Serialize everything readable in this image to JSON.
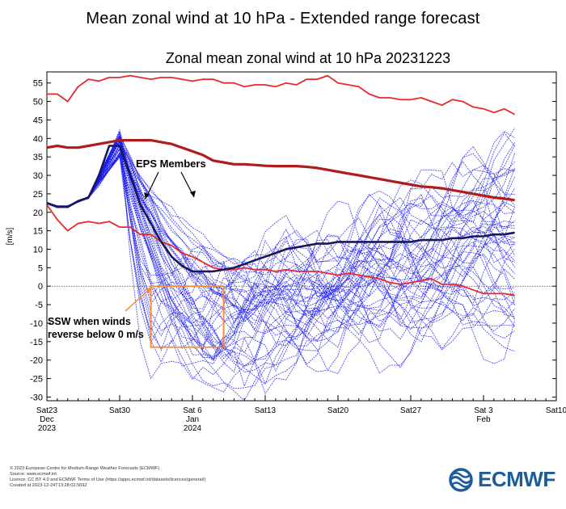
{
  "page": {
    "title": "Mean zonal wind at 10 hPa - Extended range forecast"
  },
  "chart_data": {
    "type": "line",
    "title": "Zonal mean zonal wind at 10 hPa 20231223",
    "ylabel": "[m/s]",
    "ylim": [
      -31,
      58
    ],
    "yticks": [
      -30,
      -25,
      -20,
      -15,
      -10,
      -5,
      0,
      5,
      10,
      15,
      20,
      25,
      30,
      35,
      40,
      45,
      50,
      55
    ],
    "xlim": [
      "2023-12-23",
      "2024-02-10"
    ],
    "xticks": [
      {
        "date": "2023-12-23",
        "label": "Sat23",
        "sub1": "Dec",
        "sub2": "2023"
      },
      {
        "date": "2023-12-30",
        "label": "Sat30",
        "sub1": "",
        "sub2": ""
      },
      {
        "date": "2024-01-06",
        "label": "Sat 6",
        "sub1": "Jan",
        "sub2": "2024"
      },
      {
        "date": "2024-01-13",
        "label": "Sat13",
        "sub1": "",
        "sub2": ""
      },
      {
        "date": "2024-01-20",
        "label": "Sat20",
        "sub1": "",
        "sub2": ""
      },
      {
        "date": "2024-01-27",
        "label": "Sat27",
        "sub1": "",
        "sub2": ""
      },
      {
        "date": "2024-02-03",
        "label": "Sat 3",
        "sub1": "Feb",
        "sub2": ""
      },
      {
        "date": "2024-02-10",
        "label": "Sat10",
        "sub1": "",
        "sub2": ""
      }
    ],
    "zero_line": true,
    "grid": false,
    "series": [
      {
        "role": "climate-max",
        "color": "#e8282b",
        "x": [
          "2023-12-23",
          "2023-12-24",
          "2023-12-25",
          "2023-12-26",
          "2023-12-27",
          "2023-12-28",
          "2023-12-29",
          "2023-12-30",
          "2023-12-31",
          "2024-01-01",
          "2024-01-02",
          "2024-01-03",
          "2024-01-04",
          "2024-01-05",
          "2024-01-06",
          "2024-01-07",
          "2024-01-08",
          "2024-01-09",
          "2024-01-10",
          "2024-01-11",
          "2024-01-12",
          "2024-01-13",
          "2024-01-14",
          "2024-01-15",
          "2024-01-16",
          "2024-01-17",
          "2024-01-18",
          "2024-01-19",
          "2024-01-20",
          "2024-01-21",
          "2024-01-22",
          "2024-01-23",
          "2024-01-24",
          "2024-01-25",
          "2024-01-26",
          "2024-01-27",
          "2024-01-28",
          "2024-01-29",
          "2024-01-30",
          "2024-01-31",
          "2024-02-01",
          "2024-02-02",
          "2024-02-03",
          "2024-02-04",
          "2024-02-05",
          "2024-02-06"
        ],
        "y": [
          52,
          52,
          50,
          54,
          56,
          55.5,
          56.5,
          56.5,
          57,
          56.5,
          56,
          56.5,
          56.5,
          56,
          55.5,
          56,
          56,
          55,
          55,
          54,
          54.5,
          54.5,
          54,
          55,
          54.5,
          56,
          56,
          57,
          55,
          54.5,
          54,
          52,
          51,
          51,
          50.5,
          50.5,
          51,
          50,
          49,
          50.5,
          50,
          48.5,
          48,
          47,
          48,
          46.5
        ]
      },
      {
        "role": "climate-min",
        "color": "#e8282b",
        "x": [
          "2023-12-23",
          "2023-12-24",
          "2023-12-25",
          "2023-12-26",
          "2023-12-27",
          "2023-12-28",
          "2023-12-29",
          "2023-12-30",
          "2023-12-31",
          "2024-01-01",
          "2024-01-02",
          "2024-01-03",
          "2024-01-04",
          "2024-01-05",
          "2024-01-06",
          "2024-01-07",
          "2024-01-08",
          "2024-01-09",
          "2024-01-10",
          "2024-01-11",
          "2024-01-12",
          "2024-01-13",
          "2024-01-14",
          "2024-01-15",
          "2024-01-16",
          "2024-01-17",
          "2024-01-18",
          "2024-01-19",
          "2024-01-20",
          "2024-01-21",
          "2024-01-22",
          "2024-01-23",
          "2024-01-24",
          "2024-01-25",
          "2024-01-26",
          "2024-01-27",
          "2024-01-28",
          "2024-01-29",
          "2024-01-30",
          "2024-01-31",
          "2024-02-01",
          "2024-02-02",
          "2024-02-03",
          "2024-02-04",
          "2024-02-05",
          "2024-02-06"
        ],
        "y": [
          22,
          18,
          15,
          17,
          17.5,
          17,
          17.5,
          16,
          16,
          14,
          14,
          12,
          11,
          9,
          8,
          6.5,
          5,
          4.5,
          4.5,
          5,
          4.5,
          4.5,
          4,
          4.5,
          4,
          4,
          4,
          3.5,
          3,
          3.5,
          3,
          2.5,
          2,
          1,
          0.5,
          1,
          1.5,
          2,
          0.5,
          0.5,
          0,
          -1,
          -2,
          -2,
          -2,
          -2.5
        ]
      },
      {
        "role": "climate-mean",
        "color": "#b01c1c",
        "x": [
          "2023-12-23",
          "2023-12-24",
          "2023-12-25",
          "2023-12-26",
          "2023-12-27",
          "2023-12-28",
          "2023-12-29",
          "2023-12-30",
          "2023-12-31",
          "2024-01-01",
          "2024-01-02",
          "2024-01-03",
          "2024-01-04",
          "2024-01-05",
          "2024-01-06",
          "2024-01-07",
          "2024-01-08",
          "2024-01-09",
          "2024-01-10",
          "2024-01-11",
          "2024-01-12",
          "2024-01-13",
          "2024-01-14",
          "2024-01-15",
          "2024-01-16",
          "2024-01-17",
          "2024-01-18",
          "2024-01-19",
          "2024-01-20",
          "2024-01-21",
          "2024-01-22",
          "2024-01-23",
          "2024-01-24",
          "2024-01-25",
          "2024-01-26",
          "2024-01-27",
          "2024-01-28",
          "2024-01-29",
          "2024-01-30",
          "2024-01-31",
          "2024-02-01",
          "2024-02-02",
          "2024-02-03",
          "2024-02-04",
          "2024-02-05",
          "2024-02-06"
        ],
        "y": [
          37.5,
          38,
          37.5,
          37.5,
          38,
          38.5,
          39,
          39.5,
          39.5,
          39.5,
          39.5,
          39,
          38.5,
          37.5,
          36.5,
          35.5,
          34,
          33.5,
          33,
          33,
          32.8,
          32.6,
          32.5,
          32.5,
          32.5,
          32.3,
          32,
          31.5,
          31,
          30.5,
          30,
          29.5,
          29,
          28.5,
          28,
          27.5,
          27,
          26.8,
          26.5,
          26,
          25.5,
          25,
          24.5,
          24,
          23.7,
          23.3
        ]
      },
      {
        "role": "ensemble-mean",
        "color": "#17175a",
        "x": [
          "2023-12-23",
          "2023-12-24",
          "2023-12-25",
          "2023-12-26",
          "2023-12-27",
          "2023-12-28",
          "2023-12-29",
          "2023-12-30",
          "2023-12-31",
          "2024-01-01",
          "2024-01-02",
          "2024-01-03",
          "2024-01-04",
          "2024-01-05",
          "2024-01-06",
          "2024-01-07",
          "2024-01-08",
          "2024-01-09",
          "2024-01-10",
          "2024-01-11",
          "2024-01-12",
          "2024-01-13",
          "2024-01-14",
          "2024-01-15",
          "2024-01-16",
          "2024-01-17",
          "2024-01-18",
          "2024-01-19",
          "2024-01-20",
          "2024-01-21",
          "2024-01-22",
          "2024-01-23",
          "2024-01-24",
          "2024-01-25",
          "2024-01-26",
          "2024-01-27",
          "2024-01-28",
          "2024-01-29",
          "2024-01-30",
          "2024-01-31",
          "2024-02-01",
          "2024-02-02",
          "2024-02-03",
          "2024-02-04",
          "2024-02-05",
          "2024-02-06"
        ],
        "y": [
          22.5,
          21.5,
          21.5,
          23,
          24,
          30,
          38,
          38,
          30,
          22,
          17,
          12,
          8,
          5.5,
          4,
          4,
          4,
          4.5,
          5,
          6,
          7,
          8,
          9,
          10,
          10.5,
          11,
          11.5,
          11.5,
          12,
          12,
          12,
          12,
          12,
          12,
          12,
          12,
          12.5,
          12.5,
          12.5,
          13,
          13,
          13.5,
          13.5,
          14,
          14,
          14.5
        ]
      }
    ],
    "ensemble": {
      "label": "EPS Members",
      "color": "#1a1aee",
      "members": 51,
      "start": "2023-12-23",
      "initial": [
        22.5,
        21.5,
        21.5,
        23,
        24
      ],
      "peak_range": [
        35,
        42
      ],
      "min_range": [
        -29,
        5
      ],
      "end_range": [
        -12,
        38
      ]
    },
    "annotations": [
      {
        "text": "EPS Members"
      },
      {
        "text": "SSW when winds reverse below 0 m/s",
        "lines": [
          "SSW when winds",
          "reverse below 0 m/s"
        ],
        "box_x": [
          "2024-01-02",
          "2024-01-09"
        ],
        "box_y": [
          -16.5,
          0
        ],
        "color": "#f28c3a"
      }
    ]
  },
  "footer": {
    "lines": [
      "© 2023 European Centre for Medium-Range Weather Forecasts (ECMWF)",
      "Source: www.ecmwf.int",
      "Licence: CC BY 4.0 and ECMWF Terms of Use (https://apps.ecmwf.int/datasets/licences/general/)",
      "Created at 2023-12-24T13:28:02.569Z"
    ]
  },
  "logo": {
    "text": "ECMWF",
    "color": "#1a5c9c"
  }
}
